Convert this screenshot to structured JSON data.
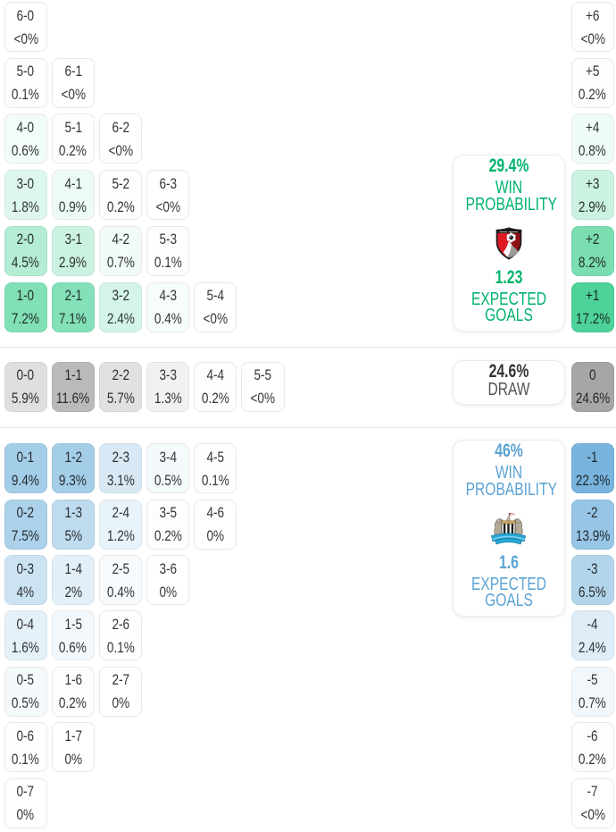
{
  "page": {
    "background": "#ffffff"
  },
  "chart_data": {
    "type": "heatmap",
    "style": {
      "home_cell_base": "#2ecb87",
      "away_cell_base": "#62a8d8",
      "draw_cell_base": "#9f9f9f",
      "alpha_curve": {
        "home": [
          [
            0,
            0
          ],
          [
            0.6,
            0.06
          ],
          [
            1.8,
            0.16
          ],
          [
            2.4,
            0.21
          ],
          [
            2.9,
            0.25
          ],
          [
            4.5,
            0.36
          ],
          [
            7.2,
            0.6
          ],
          [
            8.2,
            0.63
          ],
          [
            17.2,
            0.85
          ],
          [
            26,
            0.95
          ]
        ],
        "away": [
          [
            0,
            0
          ],
          [
            0.5,
            0.07
          ],
          [
            1.2,
            0.14
          ],
          [
            3.1,
            0.25
          ],
          [
            5,
            0.41
          ],
          [
            7.5,
            0.53
          ],
          [
            9.4,
            0.58
          ],
          [
            13.9,
            0.67
          ],
          [
            22.3,
            0.86
          ],
          [
            30,
            0.97
          ]
        ],
        "draw": [
          [
            0,
            0
          ],
          [
            1.3,
            0.15
          ],
          [
            5.8,
            0.33
          ],
          [
            11.6,
            0.72
          ],
          [
            24.6,
            0.93
          ],
          [
            30,
            0.97
          ]
        ]
      },
      "cell_border": "#e9e9e9",
      "divider": "#e4e4e4",
      "cell_text": "rgba(16,16,16,0.86)"
    },
    "home_panel": {
      "win_probability": "29.4%",
      "win_label": "WIN PROBABILITY",
      "expected_goals": "1.23",
      "goals_label": "EXPECTED GOALS",
      "accent": "#00b36d",
      "team_icon": "bournemouth-crest"
    },
    "draw_panel": {
      "probability": "24.6%",
      "label": "DRAW",
      "value_color": "#333333",
      "label_color": "#555555"
    },
    "away_panel": {
      "win_probability": "46%",
      "win_label": "WIN PROBABILITY",
      "expected_goals": "1.6",
      "goals_label": "EXPECTED GOALS",
      "accent": "#5ba3d4",
      "team_icon": "newcastle-crest"
    },
    "home_rows": [
      [
        {
          "score": "6-0",
          "pct": "<0%",
          "p": 0.0
        }
      ],
      [
        {
          "score": "5-0",
          "pct": "0.1%",
          "p": 0.1
        },
        {
          "score": "6-1",
          "pct": "<0%",
          "p": 0.0
        }
      ],
      [
        {
          "score": "4-0",
          "pct": "0.6%",
          "p": 0.6
        },
        {
          "score": "5-1",
          "pct": "0.2%",
          "p": 0.2
        },
        {
          "score": "6-2",
          "pct": "<0%",
          "p": 0.0
        }
      ],
      [
        {
          "score": "3-0",
          "pct": "1.8%",
          "p": 1.8
        },
        {
          "score": "4-1",
          "pct": "0.9%",
          "p": 0.9
        },
        {
          "score": "5-2",
          "pct": "0.2%",
          "p": 0.2
        },
        {
          "score": "6-3",
          "pct": "<0%",
          "p": 0.0
        }
      ],
      [
        {
          "score": "2-0",
          "pct": "4.5%",
          "p": 4.5
        },
        {
          "score": "3-1",
          "pct": "2.9%",
          "p": 2.9
        },
        {
          "score": "4-2",
          "pct": "0.7%",
          "p": 0.7
        },
        {
          "score": "5-3",
          "pct": "0.1%",
          "p": 0.1
        }
      ],
      [
        {
          "score": "1-0",
          "pct": "7.2%",
          "p": 7.2
        },
        {
          "score": "2-1",
          "pct": "7.1%",
          "p": 7.1
        },
        {
          "score": "3-2",
          "pct": "2.4%",
          "p": 2.4
        },
        {
          "score": "4-3",
          "pct": "0.4%",
          "p": 0.4
        },
        {
          "score": "5-4",
          "pct": "<0%",
          "p": 0.0
        }
      ]
    ],
    "draw_row": [
      {
        "score": "0-0",
        "pct": "5.9%",
        "p": 5.9
      },
      {
        "score": "1-1",
        "pct": "11.6%",
        "p": 11.6
      },
      {
        "score": "2-2",
        "pct": "5.7%",
        "p": 5.7
      },
      {
        "score": "3-3",
        "pct": "1.3%",
        "p": 1.3
      },
      {
        "score": "4-4",
        "pct": "0.2%",
        "p": 0.2
      },
      {
        "score": "5-5",
        "pct": "<0%",
        "p": 0.0
      }
    ],
    "away_rows": [
      [
        {
          "score": "0-1",
          "pct": "9.4%",
          "p": 9.4
        },
        {
          "score": "1-2",
          "pct": "9.3%",
          "p": 9.3
        },
        {
          "score": "2-3",
          "pct": "3.1%",
          "p": 3.1
        },
        {
          "score": "3-4",
          "pct": "0.5%",
          "p": 0.5
        },
        {
          "score": "4-5",
          "pct": "0.1%",
          "p": 0.1
        }
      ],
      [
        {
          "score": "0-2",
          "pct": "7.5%",
          "p": 7.5
        },
        {
          "score": "1-3",
          "pct": "5%",
          "p": 5.0
        },
        {
          "score": "2-4",
          "pct": "1.2%",
          "p": 1.2
        },
        {
          "score": "3-5",
          "pct": "0.2%",
          "p": 0.2
        },
        {
          "score": "4-6",
          "pct": "0%",
          "p": 0.0
        }
      ],
      [
        {
          "score": "0-3",
          "pct": "4%",
          "p": 4.0
        },
        {
          "score": "1-4",
          "pct": "2%",
          "p": 2.0
        },
        {
          "score": "2-5",
          "pct": "0.4%",
          "p": 0.4
        },
        {
          "score": "3-6",
          "pct": "0%",
          "p": 0.0
        }
      ],
      [
        {
          "score": "0-4",
          "pct": "1.6%",
          "p": 1.6
        },
        {
          "score": "1-5",
          "pct": "0.6%",
          "p": 0.6
        },
        {
          "score": "2-6",
          "pct": "0.1%",
          "p": 0.1
        }
      ],
      [
        {
          "score": "0-5",
          "pct": "0.5%",
          "p": 0.5
        },
        {
          "score": "1-6",
          "pct": "0.2%",
          "p": 0.2
        },
        {
          "score": "2-7",
          "pct": "0%",
          "p": 0.0
        }
      ],
      [
        {
          "score": "0-6",
          "pct": "0.1%",
          "p": 0.1
        },
        {
          "score": "1-7",
          "pct": "0%",
          "p": 0.0
        }
      ],
      [
        {
          "score": "0-7",
          "pct": "0%",
          "p": 0.0
        }
      ]
    ],
    "diff_column": [
      {
        "pct": "<0%",
        "p": 0.0,
        "diff": "+6",
        "group": "home"
      },
      {
        "pct": "0.2%",
        "p": 0.2,
        "diff": "+5",
        "group": "home"
      },
      {
        "pct": "0.8%",
        "p": 0.8,
        "diff": "+4",
        "group": "home"
      },
      {
        "pct": "2.9%",
        "p": 2.9,
        "diff": "+3",
        "group": "home"
      },
      {
        "pct": "8.2%",
        "p": 8.2,
        "diff": "+2",
        "group": "home"
      },
      {
        "pct": "17.2%",
        "p": 17.2,
        "diff": "+1",
        "group": "home"
      },
      {
        "pct": "24.6%",
        "p": 24.6,
        "diff": "0",
        "group": "draw"
      },
      {
        "pct": "22.3%",
        "p": 22.3,
        "diff": "-1",
        "group": "away"
      },
      {
        "pct": "13.9%",
        "p": 13.9,
        "diff": "-2",
        "group": "away"
      },
      {
        "pct": "6.5%",
        "p": 6.5,
        "diff": "-3",
        "group": "away"
      },
      {
        "pct": "2.4%",
        "p": 2.4,
        "diff": "-4",
        "group": "away"
      },
      {
        "pct": "0.7%",
        "p": 0.7,
        "diff": "-5",
        "group": "away"
      },
      {
        "pct": "0.2%",
        "p": 0.2,
        "diff": "-6",
        "group": "away"
      },
      {
        "pct": "<0%",
        "p": 0.0,
        "diff": "-7",
        "group": "away"
      }
    ]
  }
}
